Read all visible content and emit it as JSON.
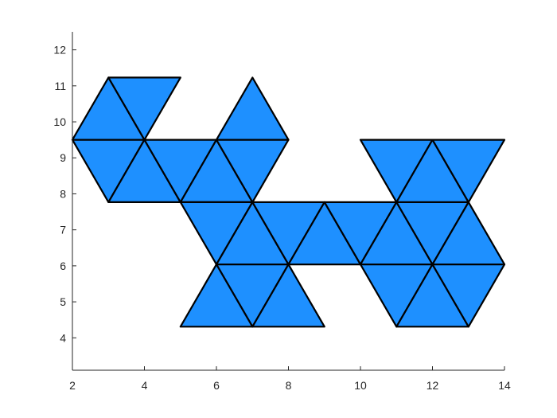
{
  "chart_data": {
    "type": "patch",
    "title": "",
    "xlabel": "",
    "ylabel": "",
    "xlim": [
      2,
      14
    ],
    "ylim": [
      3.1,
      12.5
    ],
    "xticks": [
      2,
      4,
      6,
      8,
      10,
      12,
      14
    ],
    "yticks": [
      4,
      5,
      6,
      7,
      8,
      9,
      10,
      11,
      12
    ],
    "xtick_labels": [
      "2",
      "4",
      "6",
      "8",
      "10",
      "12",
      "14"
    ],
    "ytick_labels": [
      "4",
      "5",
      "6",
      "7",
      "8",
      "9",
      "10",
      "11",
      "12"
    ],
    "face_color": "#1e90ff",
    "edge_color": "#000000",
    "triangles": [
      [
        [
          3,
          11.23
        ],
        [
          2,
          9.5
        ],
        [
          4,
          9.5
        ]
      ],
      [
        [
          3,
          11.23
        ],
        [
          5,
          11.23
        ],
        [
          4,
          9.5
        ]
      ],
      [
        [
          2,
          9.5
        ],
        [
          4,
          9.5
        ],
        [
          3,
          7.77
        ]
      ],
      [
        [
          4,
          9.5
        ],
        [
          3,
          7.77
        ],
        [
          5,
          7.77
        ]
      ],
      [
        [
          4,
          9.5
        ],
        [
          6,
          9.5
        ],
        [
          5,
          7.77
        ]
      ],
      [
        [
          6,
          9.5
        ],
        [
          5,
          7.77
        ],
        [
          7,
          7.77
        ]
      ],
      [
        [
          7,
          11.23
        ],
        [
          6,
          9.5
        ],
        [
          8,
          9.5
        ]
      ],
      [
        [
          6,
          9.5
        ],
        [
          8,
          9.5
        ],
        [
          7,
          7.77
        ]
      ],
      [
        [
          5,
          7.77
        ],
        [
          7,
          7.77
        ],
        [
          6,
          6.04
        ]
      ],
      [
        [
          7,
          7.77
        ],
        [
          6,
          6.04
        ],
        [
          8,
          6.04
        ]
      ],
      [
        [
          7,
          7.77
        ],
        [
          9,
          7.77
        ],
        [
          8,
          6.04
        ]
      ],
      [
        [
          9,
          7.77
        ],
        [
          8,
          6.04
        ],
        [
          10,
          6.04
        ]
      ],
      [
        [
          9,
          7.77
        ],
        [
          11,
          7.77
        ],
        [
          10,
          6.04
        ]
      ],
      [
        [
          11,
          7.77
        ],
        [
          10,
          6.04
        ],
        [
          12,
          6.04
        ]
      ],
      [
        [
          11,
          7.77
        ],
        [
          13,
          7.77
        ],
        [
          12,
          6.04
        ]
      ],
      [
        [
          13,
          7.77
        ],
        [
          12,
          6.04
        ],
        [
          14,
          6.04
        ]
      ],
      [
        [
          6,
          6.04
        ],
        [
          8,
          6.04
        ],
        [
          7,
          4.31
        ]
      ],
      [
        [
          6,
          6.04
        ],
        [
          5,
          4.31
        ],
        [
          7,
          4.31
        ]
      ],
      [
        [
          8,
          6.04
        ],
        [
          7,
          4.31
        ],
        [
          9,
          4.31
        ]
      ],
      [
        [
          10,
          6.04
        ],
        [
          12,
          6.04
        ],
        [
          11,
          4.31
        ]
      ],
      [
        [
          12,
          6.04
        ],
        [
          11,
          4.31
        ],
        [
          13,
          4.31
        ]
      ],
      [
        [
          12,
          6.04
        ],
        [
          14,
          6.04
        ],
        [
          13,
          4.31
        ]
      ],
      [
        [
          10,
          9.5
        ],
        [
          12,
          9.5
        ],
        [
          11,
          7.77
        ]
      ],
      [
        [
          12,
          9.5
        ],
        [
          11,
          7.77
        ],
        [
          13,
          7.77
        ]
      ],
      [
        [
          12,
          9.5
        ],
        [
          14,
          9.5
        ],
        [
          13,
          7.77
        ]
      ]
    ]
  }
}
